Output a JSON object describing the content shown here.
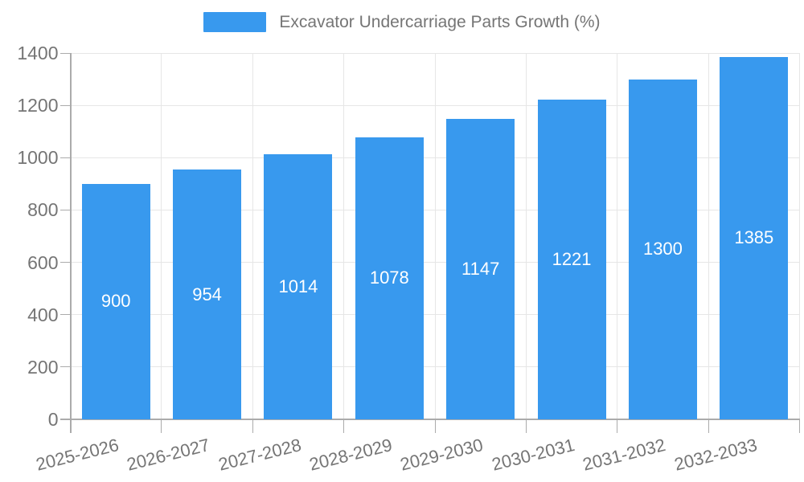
{
  "chart_data": {
    "type": "bar",
    "title": "Excavator Undercarriage Parts Growth (%)",
    "categories": [
      "2025-2026",
      "2026-2027",
      "2027-2028",
      "2028-2029",
      "2029-2030",
      "2030-2031",
      "2031-2032",
      "2032-2033"
    ],
    "values": [
      900,
      954,
      1014,
      1078,
      1147,
      1221,
      1300,
      1385
    ],
    "xlabel": "",
    "ylabel": "",
    "ylim": [
      0,
      1400
    ],
    "ytick_step": 200,
    "ytick_labels": [
      "0",
      "200",
      "400",
      "600",
      "800",
      "1000",
      "1200",
      "1400"
    ],
    "legend_position": "top",
    "grid": true,
    "colors": {
      "bar": "#3899EE",
      "value_label": "#FFFFFF",
      "axis_text": "#757575",
      "gridline": "#E6E6E6",
      "axis_line": "#ABABAB"
    }
  }
}
